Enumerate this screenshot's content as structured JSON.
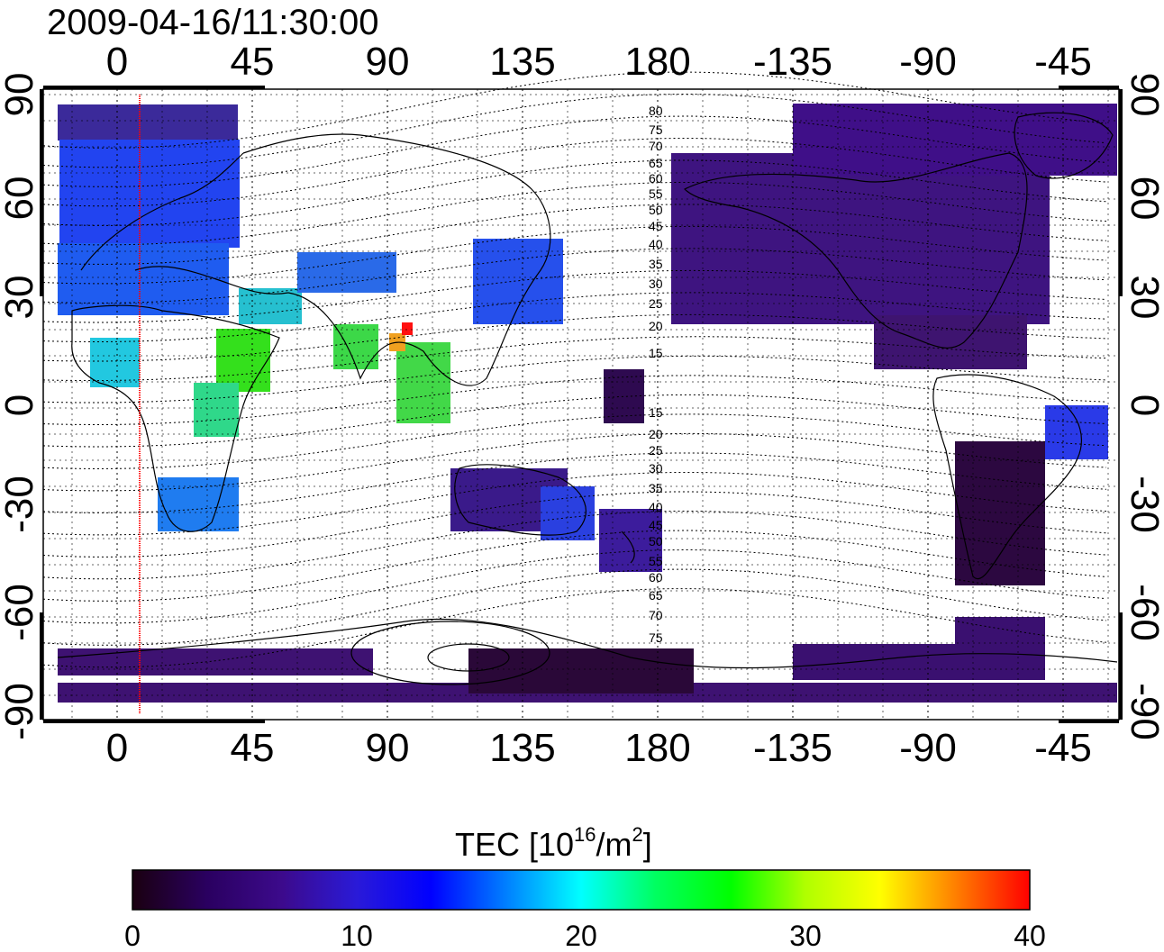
{
  "title": "2009-04-16/11:30:00",
  "map": {
    "x_ticks": [
      "0",
      "45",
      "90",
      "135",
      "180",
      "-135",
      "-90",
      "-45"
    ],
    "y_ticks": [
      "90",
      "60",
      "30",
      "0",
      "-30",
      "-60",
      "-90"
    ],
    "magnetic_latitude_labels": [
      "80",
      "75",
      "70",
      "65",
      "60",
      "55",
      "50",
      "45",
      "40",
      "35",
      "30",
      "25",
      "20",
      "15",
      "15",
      "20",
      "25",
      "30",
      "35",
      "40",
      "45",
      "50",
      "55",
      "60",
      "65",
      "70",
      "75"
    ],
    "red_line_longitude": 8
  },
  "colorbar": {
    "label_main": "TEC  [10",
    "label_exp": "16",
    "label_mid": "/m",
    "label_exp2": "2",
    "label_end": "]",
    "ticks": [
      "0",
      "10",
      "20",
      "30",
      "40"
    ],
    "stops": [
      "#1a0010",
      "#2a0060",
      "#3c0a8c",
      "#2a1ad8",
      "#0000ff",
      "#0080ff",
      "#00ffff",
      "#00ff60",
      "#00ff00",
      "#b0ff00",
      "#ffff00",
      "#ff8000",
      "#ff0000"
    ]
  },
  "colors": {
    "low": "#3e0f74",
    "mid_blue": "#2a3fe8",
    "green": "#34e01c",
    "yellow": "#e8f000",
    "red": "#ff0000",
    "land": "#000000"
  }
}
